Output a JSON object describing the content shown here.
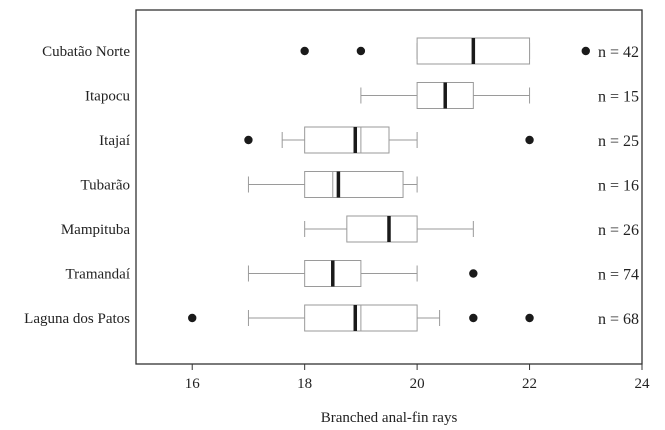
{
  "chart_data": {
    "type": "boxplot",
    "orientation": "horizontal",
    "xlabel": "Branched anal-fin rays",
    "xlim": [
      15,
      24
    ],
    "xticks": [
      "16",
      "18",
      "20",
      "22",
      "24"
    ],
    "grid": false,
    "series": [
      {
        "category": "Cubatão Norte",
        "n_label": "n = 42",
        "min": 20,
        "q1": 20,
        "median": 21,
        "q3": 22,
        "max": 22,
        "mean": 21,
        "outliers": [
          18,
          19,
          23
        ]
      },
      {
        "category": "Itapocu",
        "n_label": "n = 15",
        "min": 19,
        "q1": 20,
        "median": 20.5,
        "q3": 21,
        "max": 22,
        "mean": 20.5,
        "outliers": []
      },
      {
        "category": "Itajaí",
        "n_label": "n = 25",
        "min": 17.6,
        "q1": 18,
        "median": 18.9,
        "q3": 19.5,
        "max": 20,
        "mean": 19,
        "outliers": [
          17,
          22
        ]
      },
      {
        "category": "Tubarão",
        "n_label": "n = 16",
        "min": 17,
        "q1": 18,
        "median": 18.6,
        "q3": 19.75,
        "max": 20,
        "mean": 18.5,
        "outliers": []
      },
      {
        "category": "Mampituba",
        "n_label": "n = 26",
        "min": 18,
        "q1": 18.75,
        "median": 19.5,
        "q3": 20,
        "max": 21,
        "mean": 19.5,
        "outliers": []
      },
      {
        "category": "Tramandaí",
        "n_label": "n = 74",
        "min": 17,
        "q1": 18,
        "median": 18.5,
        "q3": 19,
        "max": 20,
        "mean": 18.5,
        "outliers": [
          21
        ]
      },
      {
        "category": "Laguna dos Patos",
        "n_label": "n = 68",
        "min": 17,
        "q1": 18,
        "median": 18.9,
        "q3": 20,
        "max": 20.4,
        "mean": 19,
        "outliers": [
          16,
          21,
          22
        ]
      }
    ],
    "colors": {
      "box_stroke": "#9a9a9a",
      "whisker": "#9a9a9a",
      "median": "#1a1a1a",
      "outlier": "#1a1a1a",
      "frame": "#333333"
    }
  }
}
